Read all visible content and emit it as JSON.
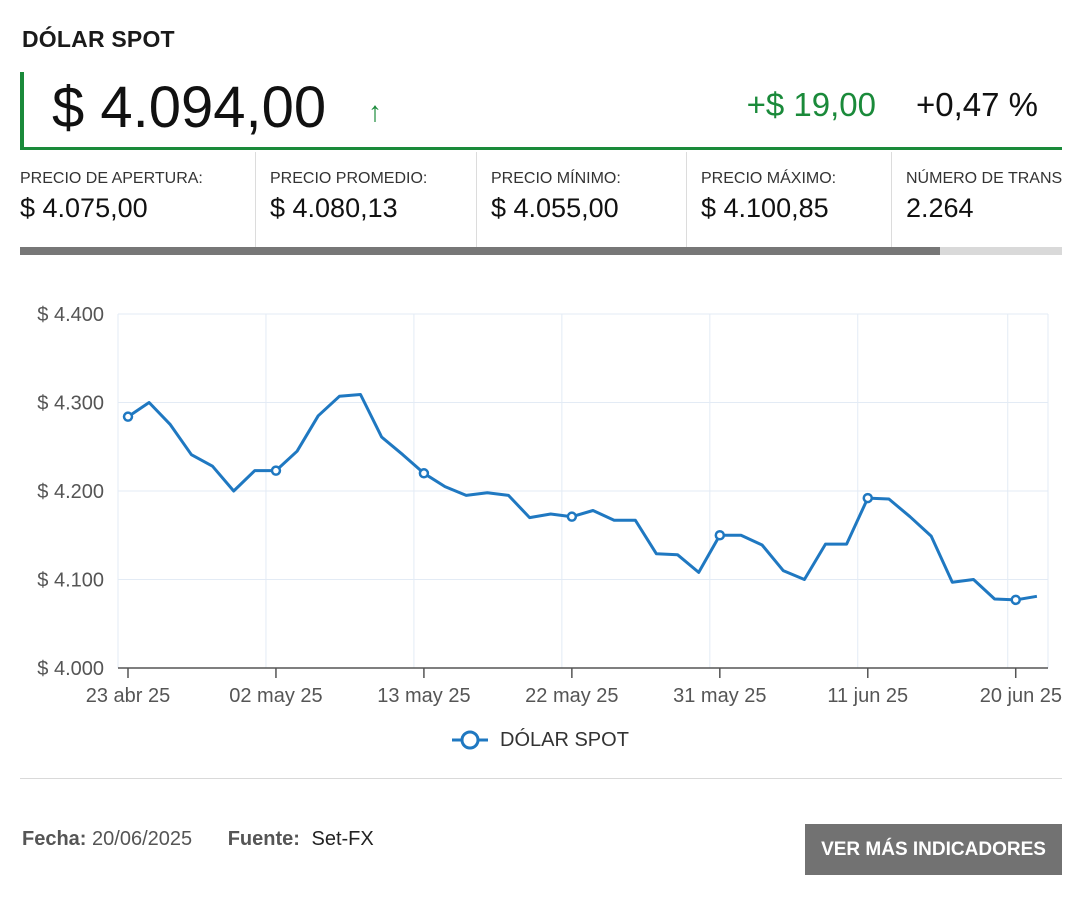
{
  "header": {
    "title": "DÓLAR SPOT"
  },
  "price": {
    "value": "$ 4.094,00",
    "arrow": "↑",
    "change": "+$ 19,00",
    "percent": "+0,47 %"
  },
  "stats": [
    {
      "label": "PRECIO DE APERTURA:",
      "value": "$ 4.075,00"
    },
    {
      "label": "PRECIO PROMEDIO:",
      "value": "$ 4.080,13"
    },
    {
      "label": "PRECIO MÍNIMO:",
      "value": "$ 4.055,00"
    },
    {
      "label": "PRECIO MÁXIMO:",
      "value": "$ 4.100,85"
    },
    {
      "label": "NÚMERO DE TRANSACCIONES:",
      "value": "2.264"
    }
  ],
  "colors": {
    "up": "#1a8a3a",
    "line": "#1f78c1",
    "grid": "#e3ebf5",
    "button": "#727272"
  },
  "chart_data": {
    "type": "line",
    "xlabel": "",
    "ylabel": "",
    "ylim": [
      4000,
      4400
    ],
    "yticks": [
      4000,
      4100,
      4200,
      4300,
      4400
    ],
    "ytick_labels": [
      "$ 4.000",
      "$ 4.100",
      "$ 4.200",
      "$ 4.300",
      "$ 4.400"
    ],
    "xticks": [
      "23 abr 25",
      "02 may 25",
      "13 may 25",
      "22 may 25",
      "31 may 25",
      "11 jun 25",
      "20 jun 25"
    ],
    "grid": true,
    "legend": "bottom-center",
    "series": [
      {
        "name": "DÓLAR SPOT",
        "x": [
          "23 abr 25",
          "24 abr 25",
          "25 abr 25",
          "28 abr 25",
          "29 abr 25",
          "30 abr 25",
          "01 may 25",
          "02 may 25",
          "05 may 25",
          "06 may 25",
          "07 may 25",
          "08 may 25",
          "09 may 25",
          "12 may 25",
          "13 may 25",
          "14 may 25",
          "15 may 25",
          "16 may 25",
          "19 may 25",
          "20 may 25",
          "21 may 25",
          "22 may 25",
          "23 may 25",
          "26 may 25",
          "27 may 25",
          "28 may 25",
          "29 may 25",
          "30 may 25",
          "31 may 25",
          "03 jun 25",
          "04 jun 25",
          "05 jun 25",
          "06 jun 25",
          "09 jun 25",
          "10 jun 25",
          "11 jun 25",
          "12 jun 25",
          "13 jun 25",
          "16 jun 25",
          "17 jun 25",
          "18 jun 25",
          "19 jun 25",
          "20 jun 25",
          "23 jun 25"
        ],
        "values": [
          4284,
          4300,
          4275,
          4241,
          4228,
          4200,
          4223,
          4223,
          4245,
          4285,
          4307,
          4309,
          4261,
          4241,
          4220,
          4205,
          4195,
          4198,
          4195,
          4170,
          4174,
          4171,
          4178,
          4167,
          4167,
          4129,
          4128,
          4108,
          4150,
          4150,
          4139,
          4110,
          4100,
          4140,
          4140,
          4192,
          4191,
          4171,
          4149,
          4097,
          4100,
          4078,
          4077,
          4081
        ],
        "markers": [
          "23 abr 25",
          "02 may 25",
          "13 may 25",
          "22 may 25",
          "31 may 25",
          "11 jun 25",
          "20 jun 25"
        ]
      }
    ]
  },
  "legend": {
    "label": "DÓLAR SPOT"
  },
  "footer": {
    "date_label": "Fecha:",
    "date": "20/06/2025",
    "source_label": "Fuente:",
    "source": "Set-FX"
  },
  "button": {
    "label": "VER MÁS INDICADORES"
  }
}
